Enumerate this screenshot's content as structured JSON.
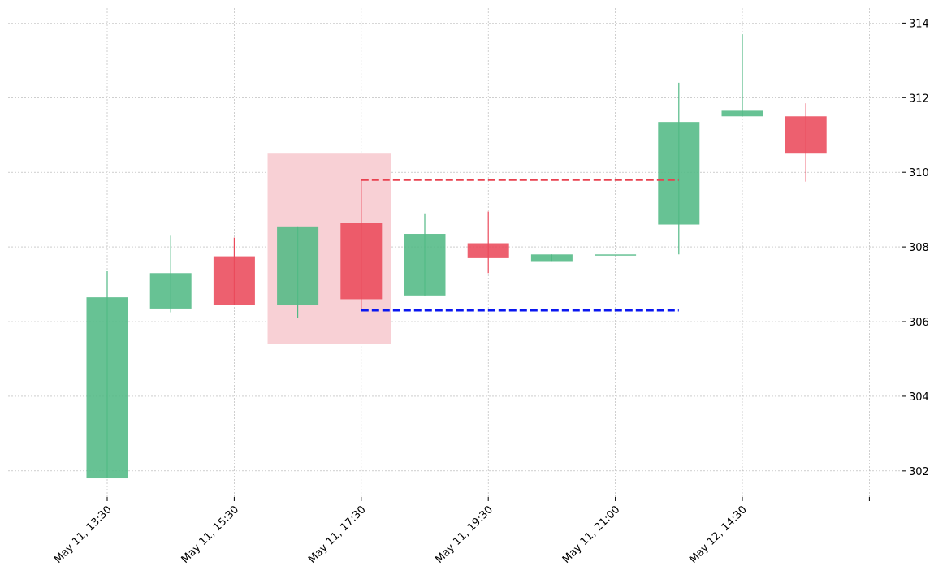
{
  "chart_data": {
    "type": "candlestick",
    "title": "",
    "xlabel": "",
    "ylabel": "",
    "ylim": [
      301.3,
      314.4
    ],
    "grid": true,
    "x_ticks": [
      {
        "label": "May 11, 13:30",
        "index": 0
      },
      {
        "label": "May 11, 15:30",
        "index": 2
      },
      {
        "label": "May 11, 17:30",
        "index": 4
      },
      {
        "label": "May 11, 19:30",
        "index": 6
      },
      {
        "label": "May 11, 21:00",
        "index": 8
      },
      {
        "label": "May 12, 14:30",
        "index": 10
      },
      {
        "label": "",
        "index": 12
      }
    ],
    "y_ticks": [
      302,
      304,
      306,
      308,
      310,
      312,
      314
    ],
    "candles": [
      {
        "open": 301.8,
        "high": 307.35,
        "low": 301.8,
        "close": 306.65
      },
      {
        "open": 306.35,
        "high": 308.3,
        "low": 306.25,
        "close": 307.3
      },
      {
        "open": 307.75,
        "high": 308.25,
        "low": 306.45,
        "close": 306.45
      },
      {
        "open": 306.45,
        "high": 308.55,
        "low": 306.1,
        "close": 308.55
      },
      {
        "open": 308.65,
        "high": 309.8,
        "low": 306.3,
        "close": 306.6
      },
      {
        "open": 306.7,
        "high": 308.9,
        "low": 306.7,
        "close": 308.35
      },
      {
        "open": 308.1,
        "high": 308.95,
        "low": 307.3,
        "close": 307.7
      },
      {
        "open": 307.6,
        "high": 307.8,
        "low": 307.6,
        "close": 307.8
      },
      {
        "open": 307.8,
        "high": 307.8,
        "low": 307.8,
        "close": 307.8
      },
      {
        "open": 308.6,
        "high": 312.4,
        "low": 307.8,
        "close": 311.35
      },
      {
        "open": 311.5,
        "high": 313.7,
        "low": 311.5,
        "close": 311.65
      },
      {
        "open": 311.5,
        "high": 311.85,
        "low": 309.75,
        "close": 310.5
      }
    ],
    "highlight_zone": {
      "from_index": 3,
      "to_index": 4,
      "y_low": 305.4,
      "y_high": 310.5,
      "color": "#f8d0d5"
    },
    "reference_lines": [
      {
        "y": 309.8,
        "from_index": 4,
        "to_index": 9,
        "color": "#e8414f",
        "style": "dashed"
      },
      {
        "y": 306.3,
        "from_index": 4,
        "to_index": 9,
        "color": "#0a17f0",
        "style": "dashed"
      }
    ],
    "colors": {
      "up": "#52b985",
      "down": "#eb4a5b",
      "grid": "#b0b0b0"
    }
  }
}
